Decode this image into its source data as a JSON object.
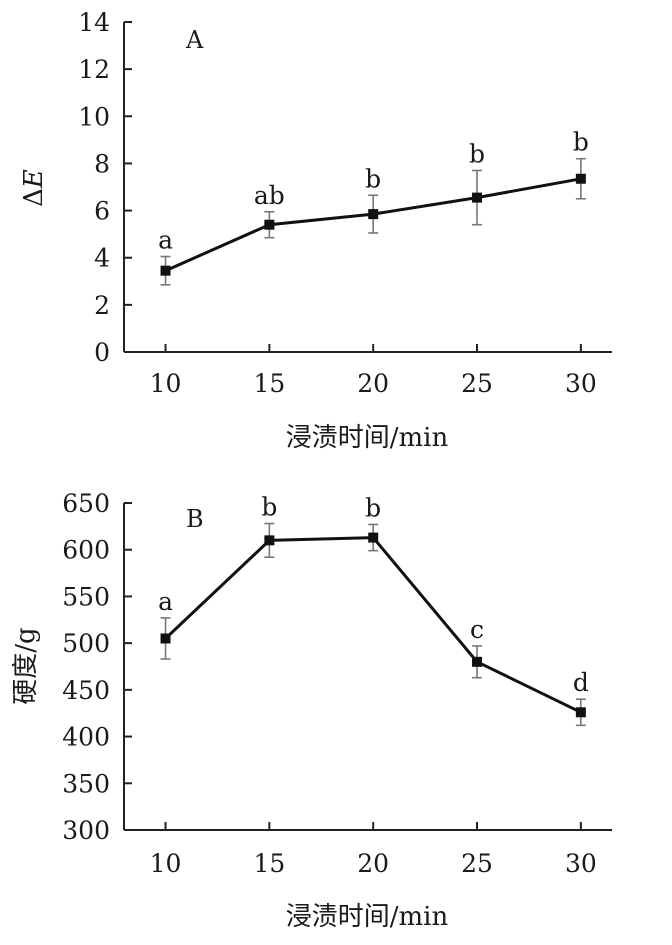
{
  "chart_data": [
    {
      "type": "line",
      "panel_label": "A",
      "title": "",
      "xlabel": "浸渍时间/min",
      "ylabel": "ΔE",
      "ylabel_parts": [
        "Δ",
        "E"
      ],
      "x": [
        10,
        15,
        20,
        25,
        30
      ],
      "xticks": [
        "10",
        "15",
        "20",
        "25",
        "30"
      ],
      "ylim": [
        0,
        14
      ],
      "yticks": [
        0,
        2,
        4,
        6,
        8,
        10,
        12,
        14
      ],
      "grid": false,
      "series": [
        {
          "values": [
            3.45,
            5.4,
            5.85,
            6.55,
            7.35
          ],
          "errors": [
            0.6,
            0.55,
            0.8,
            1.15,
            0.85
          ],
          "labels": [
            "a",
            "ab",
            "b",
            "b",
            "b"
          ]
        }
      ]
    },
    {
      "type": "line",
      "panel_label": "B",
      "title": "",
      "xlabel": "浸渍时间/min",
      "ylabel": "硬度/g",
      "x": [
        10,
        15,
        20,
        25,
        30
      ],
      "xticks": [
        "10",
        "15",
        "20",
        "25",
        "30"
      ],
      "ylim": [
        300,
        650
      ],
      "yticks": [
        300,
        350,
        400,
        450,
        500,
        550,
        600,
        650
      ],
      "grid": false,
      "series": [
        {
          "values": [
            505,
            610,
            613,
            480,
            426
          ],
          "errors": [
            22,
            18,
            14,
            17,
            14
          ],
          "labels": [
            "a",
            "b",
            "b",
            "c",
            "d"
          ]
        }
      ]
    }
  ]
}
